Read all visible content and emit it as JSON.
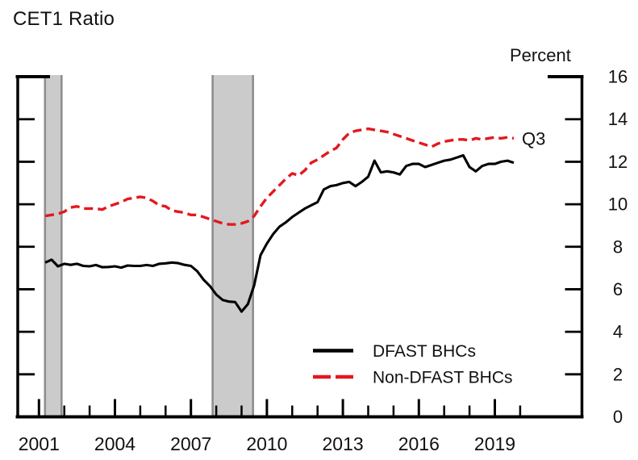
{
  "chart_data": {
    "type": "line",
    "title": "CET1 Ratio",
    "ylabel": "Percent",
    "xlabel": "",
    "ylim": [
      0,
      16
    ],
    "y_ticks": [
      0,
      2,
      4,
      6,
      8,
      10,
      12,
      14,
      16
    ],
    "y_tick_side": "right",
    "grid": false,
    "x": {
      "frequency": "quarterly",
      "start": "2001 Q1",
      "end": "2019 Q3",
      "count": 75
    },
    "x_tick_years_minor": [
      2001,
      2002,
      2003,
      2004,
      2005,
      2006,
      2007,
      2008,
      2009,
      2010,
      2011,
      2012,
      2013,
      2014,
      2015,
      2016,
      2017,
      2018,
      2019,
      2020
    ],
    "x_tick_years_labeled": [
      2001,
      2004,
      2007,
      2010,
      2013,
      2016,
      2019
    ],
    "end_of_series_label": "Q3",
    "legend_position": "inside-bottom-center",
    "recession_bands": [
      {
        "start": 2001.2,
        "end": 2001.93
      },
      {
        "start": 2007.82,
        "end": 2009.49
      }
    ],
    "colors": {
      "axis": "#000000",
      "text": "#111111",
      "recession_fill": "#cbcbcb",
      "recession_edge": "#8e8e8e"
    },
    "series": [
      {
        "name": "DFAST BHCs",
        "style": "solid",
        "color": "#000000",
        "values": [
          7.26,
          7.39,
          7.08,
          7.2,
          7.15,
          7.2,
          7.1,
          7.08,
          7.14,
          7.04,
          7.05,
          7.08,
          7.02,
          7.12,
          7.1,
          7.1,
          7.14,
          7.1,
          7.2,
          7.22,
          7.26,
          7.23,
          7.15,
          7.1,
          6.85,
          6.45,
          6.15,
          5.75,
          5.5,
          5.42,
          5.4,
          4.95,
          5.3,
          6.2,
          7.6,
          8.15,
          8.6,
          8.95,
          9.15,
          9.4,
          9.6,
          9.8,
          9.95,
          10.1,
          10.7,
          10.85,
          10.9,
          11.0,
          11.05,
          10.85,
          11.05,
          11.3,
          12.05,
          11.5,
          11.55,
          11.5,
          11.4,
          11.8,
          11.9,
          11.9,
          11.75,
          11.85,
          11.95,
          12.05,
          12.1,
          12.2,
          12.3,
          11.75,
          11.55,
          11.8,
          11.9,
          11.9,
          12.0,
          12.05,
          11.95
        ]
      },
      {
        "name": "Non-DFAST BHCs",
        "style": "dashed",
        "color": "#e2191d",
        "values": [
          9.45,
          9.5,
          9.55,
          9.65,
          9.85,
          9.9,
          9.8,
          9.8,
          9.8,
          9.75,
          9.9,
          10.0,
          10.1,
          10.25,
          10.3,
          10.35,
          10.3,
          10.15,
          9.95,
          9.9,
          9.7,
          9.65,
          9.6,
          9.5,
          9.5,
          9.4,
          9.3,
          9.2,
          9.1,
          9.05,
          9.05,
          9.1,
          9.2,
          9.45,
          9.9,
          10.3,
          10.6,
          10.9,
          11.2,
          11.45,
          11.35,
          11.6,
          11.95,
          12.1,
          12.3,
          12.5,
          12.65,
          13.05,
          13.35,
          13.45,
          13.5,
          13.55,
          13.5,
          13.45,
          13.4,
          13.3,
          13.2,
          13.1,
          13.0,
          12.9,
          12.8,
          12.7,
          12.85,
          12.95,
          13.0,
          13.05,
          13.05,
          13.0,
          13.1,
          13.05,
          13.1,
          13.15,
          13.1,
          13.15,
          13.1
        ]
      }
    ]
  }
}
